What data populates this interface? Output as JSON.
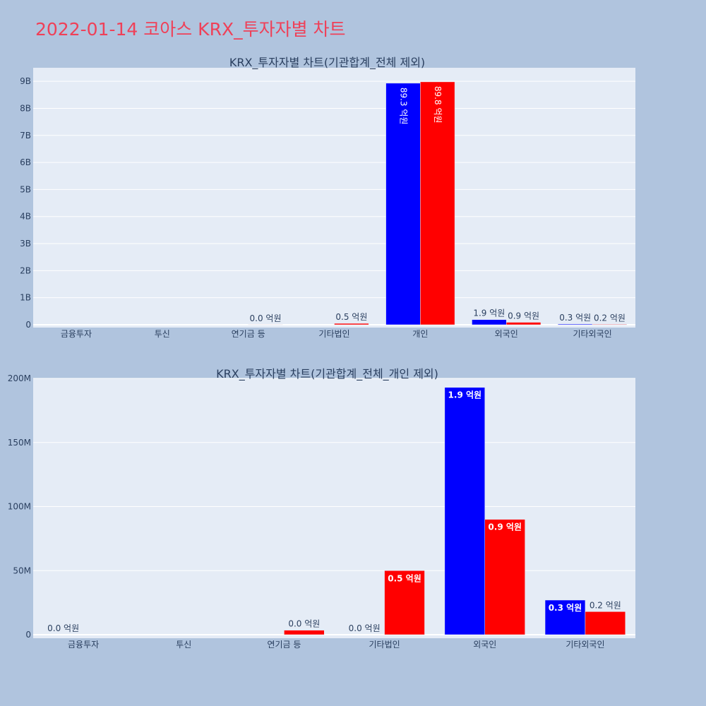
{
  "page_title": "2022-01-14 코아스 KRX_투자자별 차트",
  "colors": {
    "background": "#b0c4de",
    "plot_bg": "#e5ecf6",
    "title": "#ef4058",
    "buy": "#0000ff",
    "sell": "#ff0000"
  },
  "chart_data": [
    {
      "type": "bar",
      "title": "KRX_투자자별 차트(기관합계_전체 제외)",
      "categories": [
        "금융투자",
        "투신",
        "연기금 등",
        "기타법인",
        "개인",
        "외국인",
        "기타외국인"
      ],
      "series": [
        {
          "color": "#0000ff",
          "values": [
            0,
            0,
            0,
            0,
            8930000000,
            190000000,
            27000000
          ],
          "labels": [
            "",
            "",
            "",
            "",
            "89.3 억원",
            "1.9 억원",
            "0.3 억원"
          ]
        },
        {
          "color": "#ff0000",
          "values": [
            0,
            0,
            3000000,
            50000000,
            8980000000,
            90000000,
            18000000
          ],
          "labels": [
            "",
            "",
            "0.0 억원",
            "0.5 억원",
            "89.8 억원",
            "0.9 억원",
            "0.2 억원"
          ]
        }
      ],
      "ylim": [
        0,
        9500000000
      ],
      "yticks": [
        0,
        1000000000,
        2000000000,
        3000000000,
        4000000000,
        5000000000,
        6000000000,
        7000000000,
        8000000000,
        9000000000
      ],
      "ytick_labels": [
        "0",
        "1B",
        "2B",
        "3B",
        "4B",
        "5B",
        "6B",
        "7B",
        "8B",
        "9B"
      ],
      "grid": true
    },
    {
      "type": "bar",
      "title": "KRX_투자자별 차트(기관합계_전체_개인 제외)",
      "categories": [
        "금융투자",
        "투신",
        "연기금 등",
        "기타법인",
        "외국인",
        "기타외국인"
      ],
      "series": [
        {
          "color": "#0000ff",
          "values": [
            0,
            0,
            0,
            0,
            193000000,
            27000000
          ],
          "labels": [
            "0.0 억원",
            "",
            "",
            "0.0 억원",
            "1.9 억원",
            "0.3 억원"
          ]
        },
        {
          "color": "#ff0000",
          "values": [
            0,
            0,
            3500000,
            50000000,
            90000000,
            18000000
          ],
          "labels": [
            "",
            "",
            "0.0 억원",
            "0.5 억원",
            "0.9 억원",
            "0.2 억원"
          ]
        }
      ],
      "ylim": [
        0,
        200000000
      ],
      "yticks": [
        0,
        50000000,
        100000000,
        150000000,
        200000000
      ],
      "ytick_labels": [
        "0",
        "50M",
        "100M",
        "150M",
        "200M"
      ],
      "grid": true
    }
  ]
}
